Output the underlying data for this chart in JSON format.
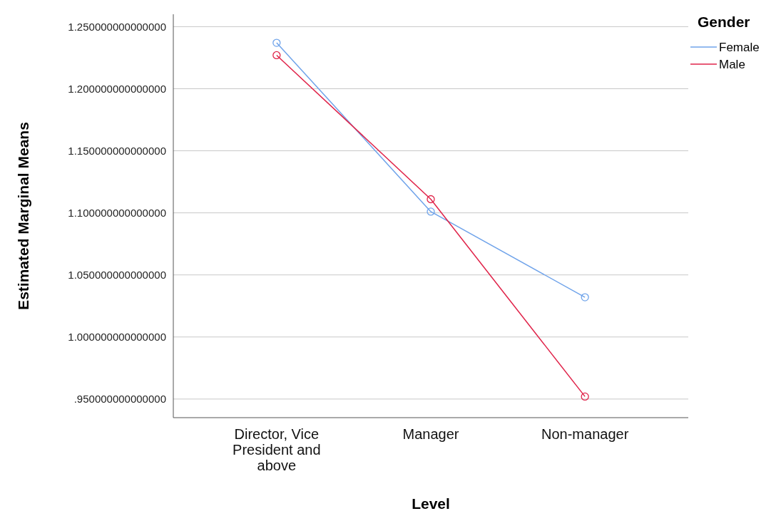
{
  "chart_data": {
    "type": "line",
    "xlabel": "Level",
    "ylabel": "Estimated Marginal Means",
    "legend_title": "Gender",
    "categories": [
      "Director, Vice President and above",
      "Manager",
      "Non-manager"
    ],
    "series": [
      {
        "name": "Female",
        "color": "#6fa3ea",
        "values": [
          1.237,
          1.101,
          1.032
        ]
      },
      {
        "name": "Male",
        "color": "#e0244a",
        "values": [
          1.227,
          1.111,
          0.952
        ]
      }
    ],
    "ylim": [
      0.935,
      1.26
    ],
    "yticks": [
      {
        "value": 0.95,
        "label": ".950000000000000"
      },
      {
        "value": 1.0,
        "label": "1.000000000000000"
      },
      {
        "value": 1.05,
        "label": "1.050000000000000"
      },
      {
        "value": 1.1,
        "label": "1.100000000000000"
      },
      {
        "value": 1.15,
        "label": "1.150000000000000"
      },
      {
        "value": 1.2,
        "label": "1.200000000000000"
      },
      {
        "value": 1.25,
        "label": "1.250000000000000"
      }
    ],
    "grid": "y",
    "legend": "top right",
    "marker": "circle",
    "line_style": "solid"
  }
}
